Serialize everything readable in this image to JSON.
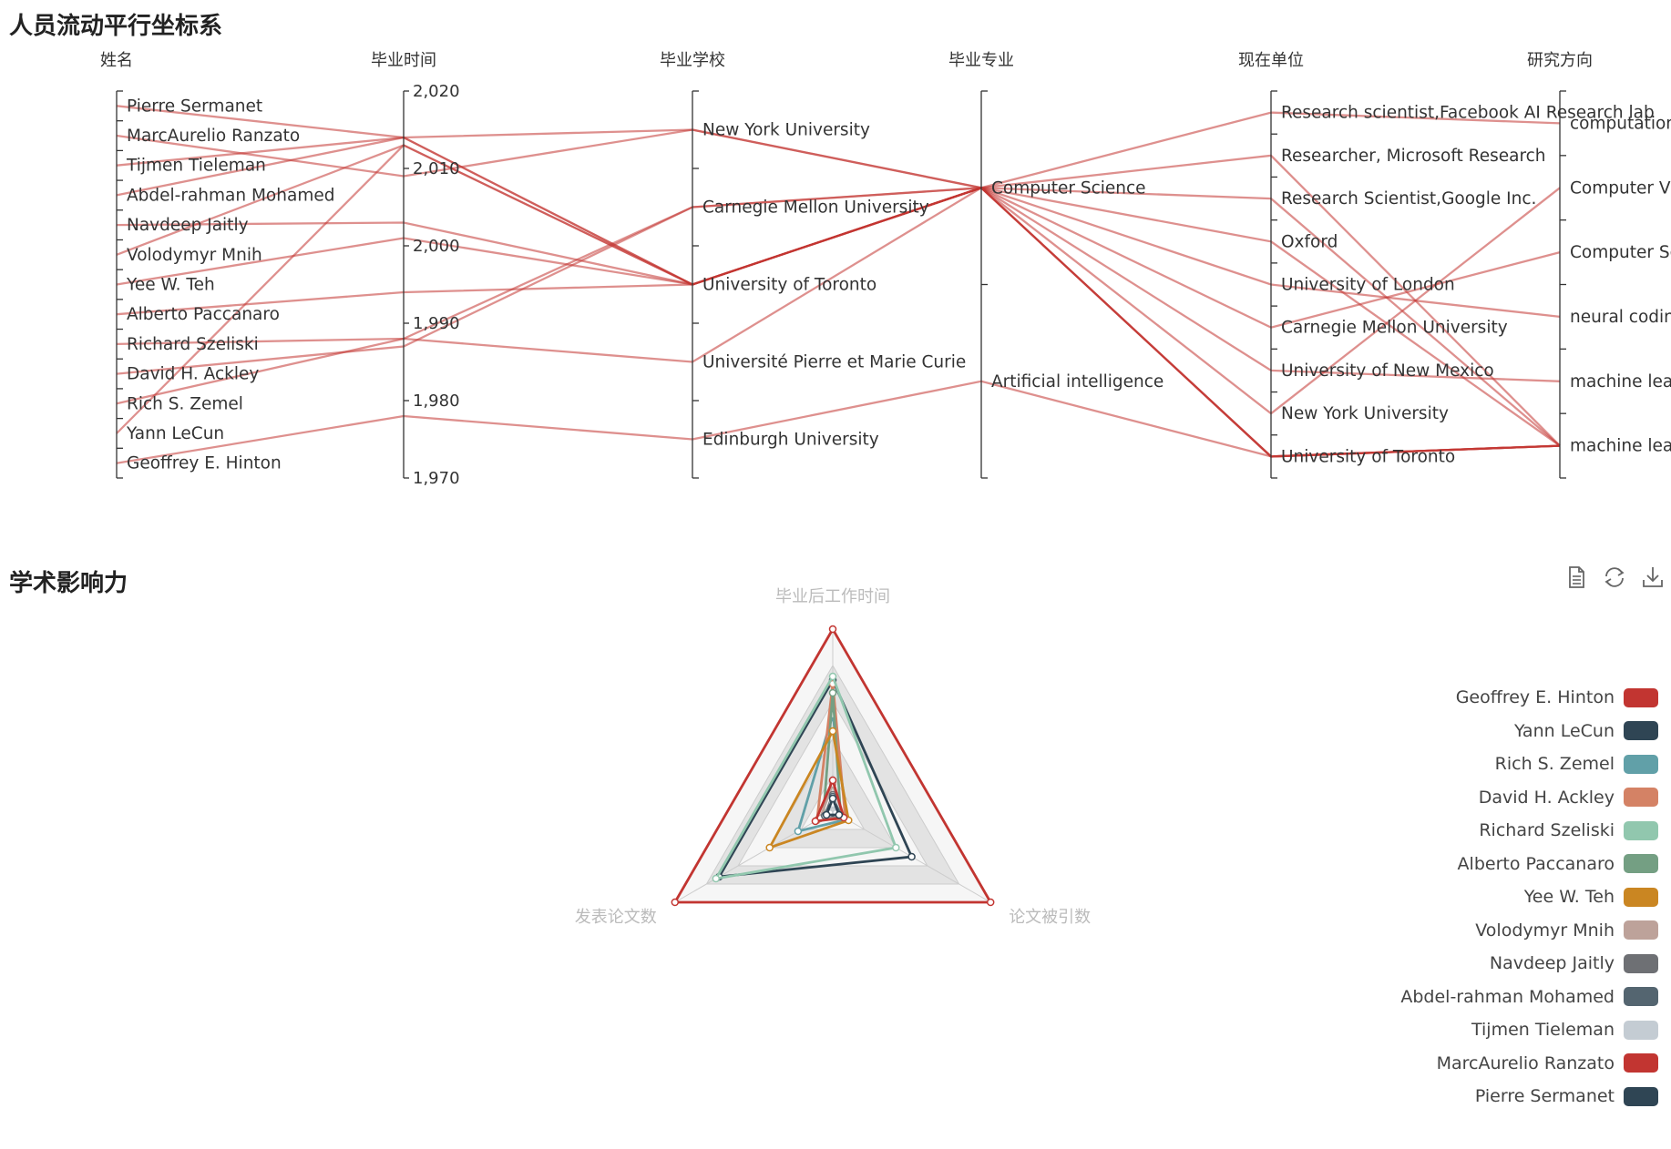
{
  "titles": {
    "parallel": "人员流动平行坐标系",
    "radar": "学术影响力"
  },
  "toolbox": {
    "items": [
      "data-view-icon",
      "restore-icon",
      "save-image-icon"
    ]
  },
  "chart_data": [
    {
      "type": "parallel",
      "title": "人员流动平行坐标系",
      "line_color": "#c23531",
      "axes": [
        {
          "name": "姓名",
          "type": "category",
          "categories": [
            "Pierre Sermanet",
            "MarcAurelio Ranzato",
            "Tijmen Tieleman",
            "Abdel-rahman Mohamed",
            "Navdeep Jaitly",
            "Volodymyr Mnih",
            "Yee W. Teh",
            "Alberto Paccanaro",
            "Richard Szeliski",
            "David H. Ackley",
            "Rich S. Zemel",
            "Yann LeCun",
            "Geoffrey E. Hinton"
          ]
        },
        {
          "name": "毕业时间",
          "type": "value",
          "min": 1970,
          "max": 2020,
          "ticks": [
            1970,
            1980,
            1990,
            2000,
            2010,
            2020
          ],
          "tick_labels": [
            "1,970",
            "1,980",
            "1,990",
            "2,000",
            "2,010",
            "2,020"
          ]
        },
        {
          "name": "毕业学校",
          "type": "category",
          "categories": [
            "New York University",
            "Carnegie Mellon University",
            "University of Toronto",
            "Université Pierre et Marie Curie",
            "Edinburgh University"
          ]
        },
        {
          "name": "毕业专业",
          "type": "category",
          "categories": [
            "Computer Science",
            "Artificial intelligence"
          ]
        },
        {
          "name": "现在单位",
          "type": "category",
          "categories": [
            "Research scientist,Facebook AI Research lab",
            "Researcher, Microsoft Research",
            "Research Scientist,Google Inc.",
            "Oxford",
            "University of London",
            "Carnegie Mellon University",
            "University of New Mexico",
            "New York University",
            "University of Toronto"
          ]
        },
        {
          "name": "研究方向",
          "type": "category",
          "categories": [
            "computation",
            "Computer Vi",
            "Computer Sc",
            "neural codin",
            "machine lear",
            "machine lear"
          ]
        }
      ],
      "records": [
        [
          "Pierre Sermanet",
          2014,
          "New York University",
          "Computer Science",
          "Research Scientist,Google Inc.",
          5
        ],
        [
          "MarcAurelio Ranzato",
          2009,
          "New York University",
          "Computer Science",
          "Research scientist,Facebook AI Research lab",
          0
        ],
        [
          "Tijmen Tieleman",
          2014,
          "University of Toronto",
          "Computer Science",
          "University of Toronto",
          5
        ],
        [
          "Abdel-rahman Mohamed",
          2014,
          "University of Toronto",
          "Computer Science",
          "Researcher, Microsoft Research",
          5
        ],
        [
          "Navdeep Jaitly",
          2003,
          "University of Toronto",
          "Computer Science",
          "Carnegie Mellon University",
          2
        ],
        [
          "Volodymyr Mnih",
          2013,
          "University of Toronto",
          "Computer Science",
          "University of Toronto",
          5
        ],
        [
          "Yee W. Teh",
          2001,
          "University of Toronto",
          "Computer Science",
          "Oxford",
          5
        ],
        [
          "Alberto Paccanaro",
          1994,
          "University of Toronto",
          "Computer Science",
          "University of London",
          3
        ],
        [
          "Richard Szeliski",
          1988,
          "Carnegie Mellon University",
          "Computer Science",
          "New York University",
          1
        ],
        [
          "David H. Ackley",
          1987,
          "Carnegie Mellon University",
          "Computer Science",
          "University of New Mexico",
          4
        ],
        [
          "Rich S. Zemel",
          1988,
          "Université Pierre et Marie Curie",
          "Computer Science",
          "University of Toronto",
          5
        ],
        [
          "Yann LeCun",
          2013,
          "University of Toronto",
          "Computer Science",
          "University of Toronto",
          5
        ],
        [
          "Geoffrey E. Hinton",
          1978,
          "Edinburgh University",
          "Artificial intelligence",
          "University of Toronto",
          5
        ]
      ]
    },
    {
      "type": "radar",
      "title": "学术影响力",
      "indicators": [
        "毕业后工作时间",
        "发表论文数",
        "论文被引数"
      ],
      "max": 1,
      "split_number": 5,
      "legend_position": "right",
      "series": [
        {
          "name": "Geoffrey E. Hinton",
          "color": "#c23531",
          "values": [
            1.0,
            1.0,
            1.0
          ]
        },
        {
          "name": "Yann LeCun",
          "color": "#2f4554",
          "values": [
            0.72,
            0.72,
            0.5
          ]
        },
        {
          "name": "Rich S. Zemel",
          "color": "#61a0a8",
          "values": [
            0.53,
            0.22,
            0.09
          ]
        },
        {
          "name": "David H. Ackley",
          "color": "#d48265",
          "values": [
            0.7,
            0.1,
            0.08
          ]
        },
        {
          "name": "Richard Szeliski",
          "color": "#91c7ae",
          "values": [
            0.74,
            0.74,
            0.4
          ]
        },
        {
          "name": "Alberto Paccanaro",
          "color": "#749f83",
          "values": [
            0.65,
            0.06,
            0.05
          ]
        },
        {
          "name": "Yee W. Teh",
          "color": "#ca8622",
          "values": [
            0.44,
            0.4,
            0.1
          ]
        },
        {
          "name": "Volodymyr Mnih",
          "color": "#bda29a",
          "values": [
            0.15,
            0.08,
            0.07
          ]
        },
        {
          "name": "Navdeep Jaitly",
          "color": "#6e7074",
          "values": [
            0.09,
            0.05,
            0.04
          ]
        },
        {
          "name": "Abdel-rahman Mohamed",
          "color": "#546570",
          "values": [
            0.08,
            0.05,
            0.05
          ]
        },
        {
          "name": "Tijmen Tieleman",
          "color": "#c4ccd3",
          "values": [
            0.04,
            0.02,
            0.02
          ]
        },
        {
          "name": "MarcAurelio Ranzato",
          "color": "#c23531",
          "values": [
            0.17,
            0.11,
            0.07
          ]
        },
        {
          "name": "Pierre Sermanet",
          "color": "#2f4554",
          "values": [
            0.07,
            0.04,
            0.04
          ]
        }
      ]
    }
  ]
}
